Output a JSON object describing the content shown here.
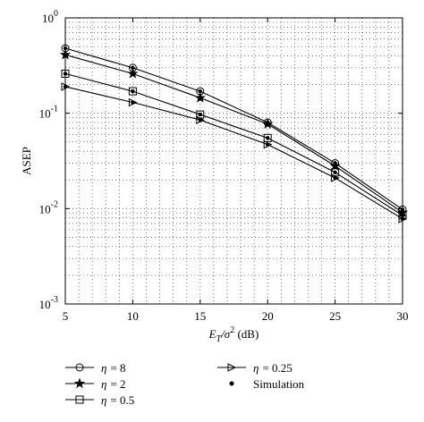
{
  "chart_data": {
    "type": "line",
    "y_scale": "log",
    "xlabel": "E_T/σ² (dB)",
    "xlabel_parts": {
      "main": "E",
      "sub": "T",
      "slash": "/σ",
      "sup": "2",
      "unit": " (dB)"
    },
    "ylabel": "ASEP",
    "xlim": [
      5,
      30
    ],
    "ylim": [
      0.001,
      1
    ],
    "grid": true,
    "x": [
      5,
      10,
      15,
      20,
      25,
      30
    ],
    "x_tick_labels": [
      "5",
      "10",
      "15",
      "20",
      "25",
      "30"
    ],
    "y_tick_labels": [
      {
        "base": "10",
        "exp": "0"
      },
      {
        "base": "10",
        "exp": "-1"
      },
      {
        "base": "10",
        "exp": "-2"
      },
      {
        "base": "10",
        "exp": "-3"
      }
    ],
    "series": [
      {
        "name": "η = 8",
        "legend_symbol": "η",
        "legend_value": "= 8",
        "marker": "circle",
        "values": [
          0.48,
          0.3,
          0.17,
          0.08,
          0.03,
          0.0098
        ]
      },
      {
        "name": "η = 2",
        "legend_symbol": "η",
        "legend_value": "= 2",
        "marker": "star",
        "values": [
          0.41,
          0.26,
          0.145,
          0.077,
          0.028,
          0.0091
        ]
      },
      {
        "name": "η = 0.5",
        "legend_symbol": "η",
        "legend_value": "= 0.5",
        "marker": "square",
        "values": [
          0.26,
          0.17,
          0.097,
          0.055,
          0.024,
          0.0085
        ]
      },
      {
        "name": "η = 0.25",
        "legend_symbol": "η",
        "legend_value": "= 0.25",
        "marker": "triangle-right",
        "values": [
          0.19,
          0.13,
          0.085,
          0.047,
          0.021,
          0.0078
        ]
      }
    ],
    "simulation_label": "Simulation",
    "legend_position": "bottom"
  }
}
